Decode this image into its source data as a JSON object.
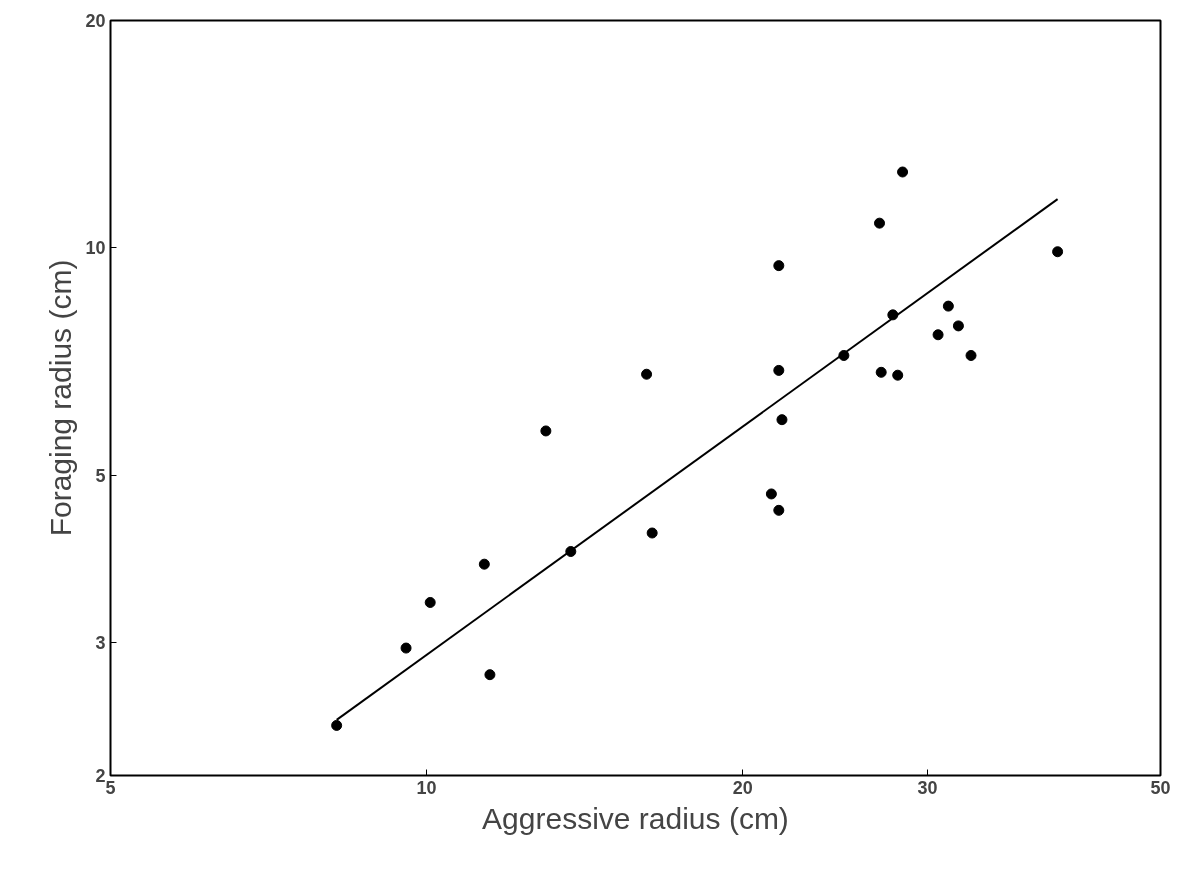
{
  "chart_data": {
    "type": "scatter",
    "xlabel": "Aggressive radius (cm)",
    "ylabel": "Foraging radius (cm)",
    "log": "xy",
    "grid": false,
    "xlim": [
      5,
      50
    ],
    "ylim": [
      2,
      20
    ],
    "xticks": [
      5,
      10,
      20,
      30,
      50
    ],
    "yticks": [
      2,
      3,
      5,
      10,
      20
    ],
    "series": [
      {
        "color": "#000000",
        "marker": "circle",
        "x": [
          8.21,
          9.56,
          10.08,
          11.35,
          11.49,
          12.99,
          13.72,
          16.2,
          16.4,
          21.3,
          21.65,
          21.65,
          21.8,
          21.65,
          24.97,
          27.0,
          27.1,
          27.8,
          28.1,
          28.4,
          30.7,
          31.4,
          32.1,
          33.0,
          39.9
        ],
        "values": [
          2.33,
          2.95,
          3.39,
          3.81,
          2.72,
          5.72,
          3.96,
          6.8,
          4.19,
          4.72,
          9.47,
          6.88,
          5.92,
          4.49,
          7.2,
          10.78,
          6.84,
          8.15,
          6.78,
          12.6,
          7.67,
          8.37,
          7.88,
          7.2,
          9.88
        ]
      },
      {
        "type": "line",
        "marker": "none",
        "color": "#000000",
        "x": [
          8.21,
          39.9
        ],
        "values": [
          2.37,
          11.6
        ]
      }
    ]
  }
}
